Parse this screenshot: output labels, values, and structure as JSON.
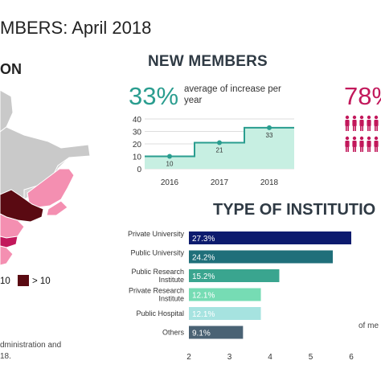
{
  "page": {
    "title": "MBERS: April 2018",
    "region_title": "ON",
    "new_members_title": "NEW MEMBERS",
    "increase_pct": "33%",
    "increase_desc": "average of increase per year",
    "right_pct": "78%",
    "type_title": "TYPE OF INSTITUTIO",
    "legend": [
      {
        "label": "10",
        "color": "#f48fb1"
      },
      {
        "label": "> 10",
        "color": "#5a0a12"
      }
    ],
    "footer_line1": "dministration and",
    "footer_line2": "18.",
    "side_note": "of me",
    "colors": {
      "teal": "#2a9d8f",
      "magenta": "#c2185b",
      "navy": "#0d1b6e"
    }
  },
  "chart_data": [
    {
      "type": "area",
      "categories": [
        "2016",
        "2017",
        "2018"
      ],
      "values": [
        10,
        21,
        33
      ],
      "data_labels": [
        "10",
        "21",
        "33"
      ],
      "ylim": [
        0,
        40
      ],
      "yticks": [
        0,
        10,
        20,
        30,
        40
      ],
      "title": "",
      "xlabel": "",
      "ylabel": "",
      "grid": true,
      "color": "#2a9d8f"
    },
    {
      "type": "bar",
      "orientation": "horizontal",
      "categories": [
        "Private University",
        "Public University",
        "Public Research Institute",
        "Private Research Institute",
        "Public Hospital",
        "Others"
      ],
      "values": [
        27.3,
        24.2,
        15.2,
        12.1,
        12.1,
        9.1
      ],
      "data_labels": [
        "27.3%",
        "24.2%",
        "15.2%",
        "12.1%",
        "12.1%",
        "9.1%"
      ],
      "colors": [
        "#0d1b6e",
        "#1f6f7a",
        "#3aa58f",
        "#76dcb4",
        "#a6e3e0",
        "#4a6274"
      ],
      "xticks": [
        2,
        3,
        4,
        5,
        6
      ],
      "title": "",
      "xlabel": "",
      "ylabel": ""
    }
  ]
}
